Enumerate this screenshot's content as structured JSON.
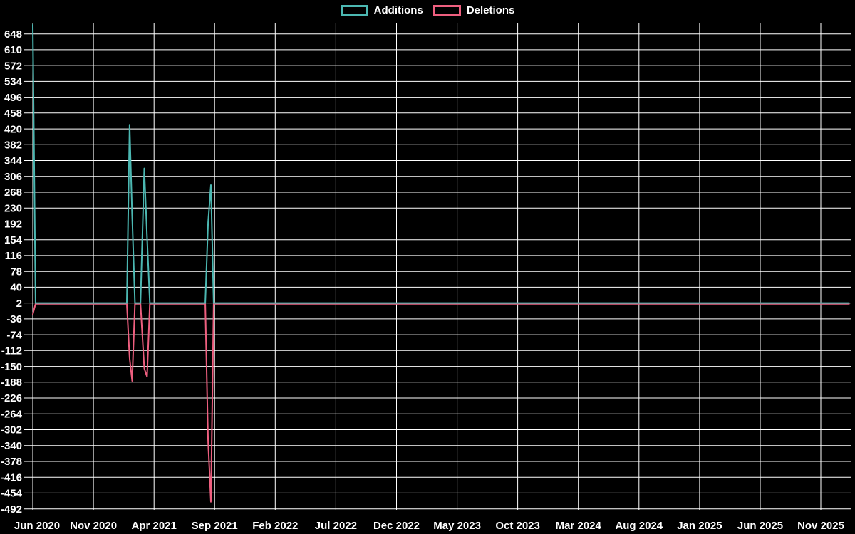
{
  "legend": {
    "items": [
      {
        "label": "Additions",
        "color": "#4cb8b2"
      },
      {
        "label": "Deletions",
        "color": "#ee5f7f"
      }
    ]
  },
  "chart_data": {
    "type": "line",
    "title": "",
    "background_color": "#000000",
    "grid_color": "#ffffff",
    "text_color": "#ffffff",
    "grid": true,
    "legend_position": "top-center",
    "x_axis": {
      "start": "2020-06",
      "end": "2026-01",
      "tick_interval_months": 5,
      "tick_labels": [
        "Jun 2020",
        "Nov 2020",
        "Apr 2021",
        "Sep 2021",
        "Feb 2022",
        "Jul 2022",
        "Dec 2022",
        "May 2023",
        "Oct 2023",
        "Mar 2024",
        "Aug 2024",
        "Jan 2025",
        "Jun 2025",
        "Nov 2025"
      ]
    },
    "y_axis": {
      "tick_step": 38,
      "ticks": [
        648,
        610,
        572,
        534,
        496,
        458,
        420,
        382,
        344,
        306,
        268,
        230,
        192,
        154,
        116,
        78,
        40,
        2,
        -36,
        -74,
        -112,
        -150,
        -188,
        -226,
        -264,
        -302,
        -340,
        -378,
        -416,
        -454,
        -492
      ],
      "range": [
        -510,
        675
      ]
    },
    "series": [
      {
        "name": "Additions",
        "color": "#4cb8b2",
        "baseline": 2,
        "points": [
          [
            "2020-06-01",
            670
          ],
          [
            "2020-06-08",
            2
          ],
          [
            "2021-01-24",
            2
          ],
          [
            "2021-01-31",
            430
          ],
          [
            "2021-02-07",
            210
          ],
          [
            "2021-02-14",
            2
          ],
          [
            "2021-02-28",
            2
          ],
          [
            "2021-03-07",
            325
          ],
          [
            "2021-03-14",
            160
          ],
          [
            "2021-03-21",
            2
          ],
          [
            "2021-08-08",
            2
          ],
          [
            "2021-08-15",
            195
          ],
          [
            "2021-08-22",
            285
          ],
          [
            "2021-08-29",
            2
          ],
          [
            "2026-01-11",
            2
          ]
        ]
      },
      {
        "name": "Deletions",
        "color": "#ee5f7f",
        "baseline": 0,
        "points": [
          [
            "2020-06-01",
            -25
          ],
          [
            "2020-06-08",
            0
          ],
          [
            "2021-01-24",
            0
          ],
          [
            "2021-01-31",
            -130
          ],
          [
            "2021-02-07",
            -185
          ],
          [
            "2021-02-14",
            0
          ],
          [
            "2021-02-28",
            0
          ],
          [
            "2021-03-07",
            -155
          ],
          [
            "2021-03-14",
            -175
          ],
          [
            "2021-03-21",
            0
          ],
          [
            "2021-08-08",
            0
          ],
          [
            "2021-08-15",
            -330
          ],
          [
            "2021-08-22",
            -475
          ],
          [
            "2021-08-29",
            0
          ],
          [
            "2026-01-11",
            0
          ]
        ]
      }
    ]
  }
}
